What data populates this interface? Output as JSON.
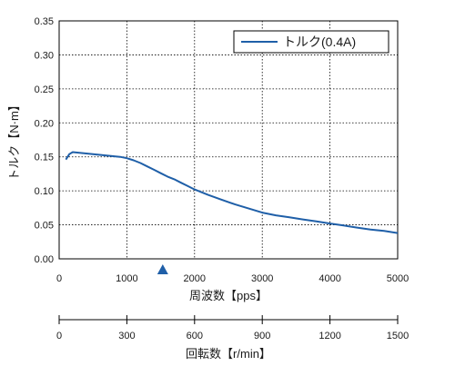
{
  "chart_data": {
    "type": "line",
    "xlabel": "周波数【pps】",
    "ylabel": "トルク【N·m】",
    "x2label": "回転数【r/min】",
    "xlim": [
      0,
      5000
    ],
    "ylim": [
      0,
      0.35
    ],
    "x2lim": [
      0,
      1500
    ],
    "grid": true,
    "grid_style": "dotted",
    "legend_position": "top-right",
    "xticks": [
      "0",
      "1000",
      "2000",
      "3000",
      "4000",
      "5000"
    ],
    "yticks": [
      "0.00",
      "0.05",
      "0.10",
      "0.15",
      "0.20",
      "0.25",
      "0.30",
      "0.35"
    ],
    "x2ticks": [
      "0",
      "300",
      "600",
      "900",
      "1200",
      "1500"
    ],
    "marker": {
      "shape": "triangle-up",
      "x": 1530,
      "color": "#1f5fa8"
    },
    "series": [
      {
        "name": "トルク(0.4A)",
        "color": "#1f5fa8",
        "x": [
          100,
          150,
          200,
          300,
          400,
          500,
          600,
          700,
          800,
          900,
          1000,
          1100,
          1200,
          1300,
          1400,
          1500,
          1600,
          1700,
          1800,
          1900,
          2000,
          2200,
          2400,
          2600,
          2800,
          3000,
          3200,
          3400,
          3600,
          3800,
          4000,
          4200,
          4400,
          4600,
          4800,
          5000
        ],
        "y": [
          0.146,
          0.154,
          0.157,
          0.156,
          0.155,
          0.154,
          0.153,
          0.152,
          0.151,
          0.15,
          0.148,
          0.145,
          0.141,
          0.136,
          0.131,
          0.126,
          0.121,
          0.117,
          0.112,
          0.107,
          0.102,
          0.094,
          0.087,
          0.08,
          0.074,
          0.068,
          0.064,
          0.061,
          0.058,
          0.055,
          0.052,
          0.049,
          0.046,
          0.043,
          0.041,
          0.038
        ]
      }
    ]
  }
}
